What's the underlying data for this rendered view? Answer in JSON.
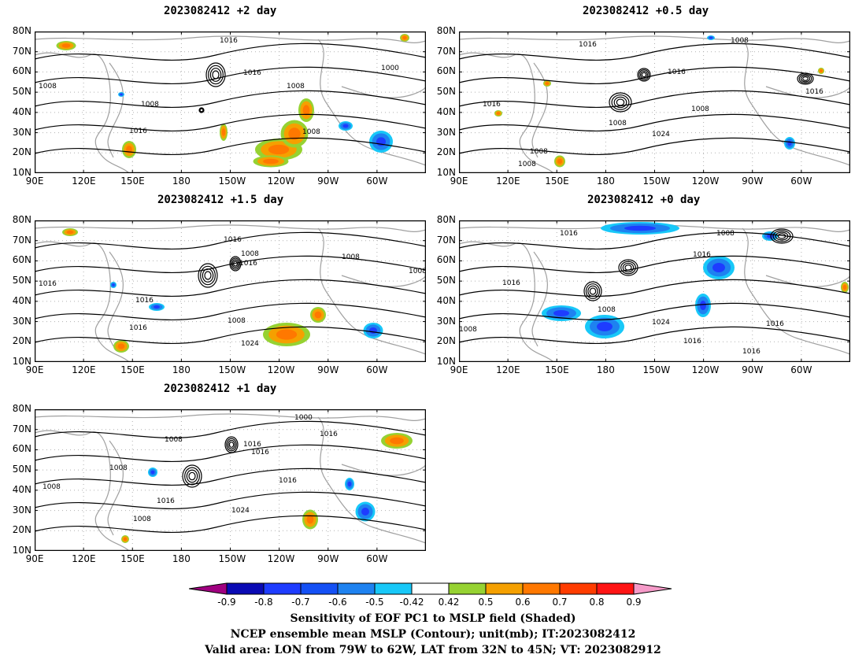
{
  "panels": [
    {
      "title": "2023082412 +2 day"
    },
    {
      "title": "2023082412 +0.5 day"
    },
    {
      "title": "2023082412 +1.5 day"
    },
    {
      "title": "2023082412 +0 day"
    },
    {
      "title": "2023082412 +1 day"
    }
  ],
  "axes": {
    "lat_labels": [
      "80N",
      "70N",
      "60N",
      "50N",
      "40N",
      "30N",
      "20N",
      "10N"
    ],
    "lon_labels": [
      "90E",
      "120E",
      "150E",
      "180",
      "150W",
      "120W",
      "90W",
      "60W"
    ]
  },
  "colorbar": {
    "ticks": [
      "-0.9",
      "-0.8",
      "-0.7",
      "-0.6",
      "-0.5",
      "-0.42",
      "0.42",
      "0.5",
      "0.6",
      "0.7",
      "0.8",
      "0.9"
    ],
    "colors": [
      "#a00080",
      "#0a0ab4",
      "#1e3cff",
      "#1450f5",
      "#1e82f0",
      "#18c8f8",
      "#ffffff",
      "#96d232",
      "#f5a000",
      "#ff7800",
      "#ff3c00",
      "#ff1414",
      "#f59ac8"
    ]
  },
  "contour_labels": {
    "p0": [
      "1016",
      "1016",
      "1008",
      "1000",
      "1008",
      "1008",
      "1016",
      "1008",
      "1016"
    ],
    "p1": [
      "1016",
      "1008",
      "1016",
      "1016",
      "1016",
      "1008",
      "1024",
      "1008",
      "1008",
      "1008"
    ],
    "p2": [
      "1016",
      "1008",
      "1016",
      "1008",
      "1016",
      "1016",
      "1008",
      "1016",
      "1024",
      "1008",
      "1016"
    ],
    "p3": [
      "1016",
      "1008",
      "1016",
      "1016",
      "1008",
      "1024",
      "1016",
      "1016",
      "1016",
      "1008"
    ],
    "p4": [
      "1000",
      "1016",
      "1008",
      "1016",
      "1008",
      "1016",
      "1016",
      "1008",
      "1016",
      "1024",
      "1008"
    ]
  },
  "captions": {
    "line1": "Sensitivity of EOF PC1 to MSLP field (Shaded)",
    "line2": "NCEP ensemble mean MSLP (Contour); unit(mb); IT:2023082412",
    "line3": "Valid area: LON from 79W to 62W, LAT from 32N to 45N; VT: 2023082912"
  }
}
